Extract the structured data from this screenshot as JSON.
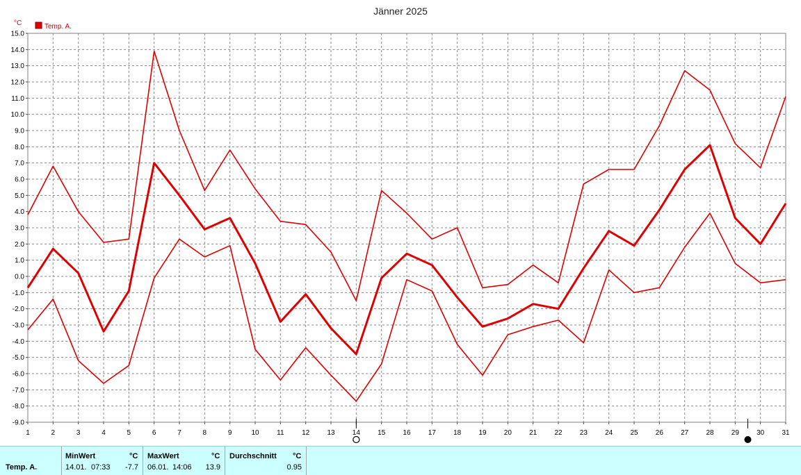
{
  "chart_data": {
    "type": "line",
    "title": "Jänner 2025",
    "ylabel": "°C",
    "ylim": [
      -9,
      15
    ],
    "yticks": [
      "15.0",
      "14.0",
      "13.0",
      "12.0",
      "11.0",
      "10.0",
      "9.0",
      "8.0",
      "7.0",
      "6.0",
      "5.0",
      "4.0",
      "3.0",
      "2.0",
      "1.0",
      "0.0",
      "-1.0",
      "-2.0",
      "-3.0",
      "-4.0",
      "-5.0",
      "-6.0",
      "-7.0",
      "-8.0",
      "-9.0"
    ],
    "x": [
      1,
      2,
      3,
      4,
      5,
      6,
      7,
      8,
      9,
      10,
      11,
      12,
      13,
      14,
      15,
      16,
      17,
      18,
      19,
      20,
      21,
      22,
      23,
      24,
      25,
      26,
      27,
      28,
      29,
      30,
      31
    ],
    "grid": true,
    "legend": {
      "position": "top-left",
      "entries": [
        "Temp. A."
      ]
    },
    "series": [
      {
        "name": "Temp. A.",
        "role": "max",
        "color": "#dd0000",
        "values": [
          3.8,
          6.8,
          4.0,
          2.1,
          2.3,
          13.9,
          9.0,
          5.3,
          7.8,
          5.4,
          3.4,
          3.2,
          1.5,
          -1.5,
          5.3,
          3.9,
          2.3,
          3.0,
          -0.7,
          -0.5,
          0.7,
          -0.4,
          5.7,
          6.6,
          6.6,
          9.3,
          12.7,
          11.5,
          8.2,
          6.7,
          11.1
        ]
      },
      {
        "name": "Temp. A.",
        "role": "mean",
        "color": "#dd0000",
        "values": [
          -0.7,
          1.7,
          0.2,
          -3.4,
          -0.9,
          7.0,
          5.0,
          2.9,
          3.6,
          0.8,
          -2.8,
          -1.1,
          -3.2,
          -4.8,
          -0.1,
          1.4,
          0.7,
          -1.3,
          -3.1,
          -2.6,
          -1.7,
          -2.0,
          0.5,
          2.8,
          1.9,
          4.1,
          6.6,
          8.1,
          3.6,
          2.0,
          4.5
        ]
      },
      {
        "name": "Temp. A.",
        "role": "min",
        "color": "#dd0000",
        "values": [
          -3.3,
          -1.4,
          -5.2,
          -6.6,
          -5.5,
          -0.1,
          2.3,
          1.2,
          1.9,
          -4.5,
          -6.4,
          -4.4,
          -6.1,
          -7.7,
          -5.4,
          -0.2,
          -0.9,
          -4.2,
          -6.1,
          -3.6,
          -3.1,
          -2.7,
          -4.1,
          0.4,
          -1.0,
          -0.7,
          1.8,
          3.9,
          0.8,
          -0.4,
          -0.2
        ]
      }
    ],
    "markers": [
      {
        "day": 14,
        "symbol": "open-circle",
        "meaning": "min"
      },
      {
        "day": 29.5,
        "symbol": "filled-circle",
        "meaning": "max"
      }
    ]
  },
  "stats": {
    "row_label": "Temp. A.",
    "min": {
      "header": "MinWert",
      "unit": "°C",
      "date": "14.01.",
      "time": "07:33",
      "value": "-7.7"
    },
    "max": {
      "header": "MaxWert",
      "unit": "°C",
      "date": "06.01.",
      "time": "14:06",
      "value": "13.9"
    },
    "avg": {
      "header": "Durchschnitt",
      "unit": "°C",
      "value": "0.95"
    }
  }
}
